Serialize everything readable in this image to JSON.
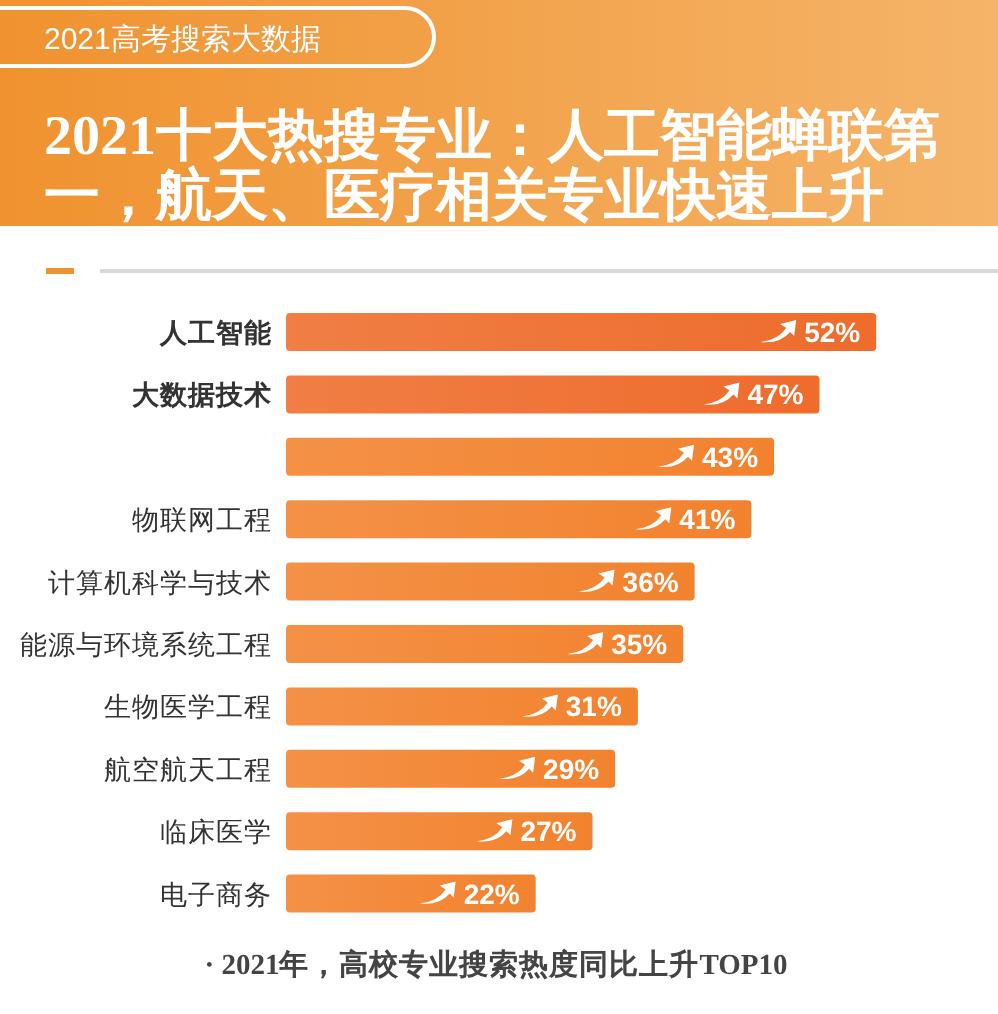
{
  "chart_data": {
    "type": "bar",
    "orientation": "horizontal",
    "subtitle": "2021高考搜索大数据",
    "title": "2021十大热搜专业：人工智能蝉联第一，航天、医疗相关专业快速上升",
    "categories": [
      "人工智能",
      "大数据技术",
      null,
      "物联网工程",
      "计算机科学与技术",
      "能源与环境系统工程",
      "生物医学工程",
      "航空航天工程",
      "临床医学",
      "电子商务"
    ],
    "values": [
      52,
      47,
      43,
      41,
      36,
      35,
      31,
      29,
      27,
      22
    ],
    "value_labels": [
      "52%",
      "47%",
      "43%",
      "41%",
      "36%",
      "35%",
      "31%",
      "29%",
      "27%",
      "22%"
    ],
    "colors": [
      "#ee6c2c",
      "#ee6c2c",
      "#f2822e",
      "#f2822e",
      "#f2822e",
      "#f2822e",
      "#f2822e",
      "#f2822e",
      "#f2822e",
      "#f2822e"
    ],
    "annotations": [
      "· 2021年，高校专业搜索热度同比上升TOP10"
    ]
  }
}
